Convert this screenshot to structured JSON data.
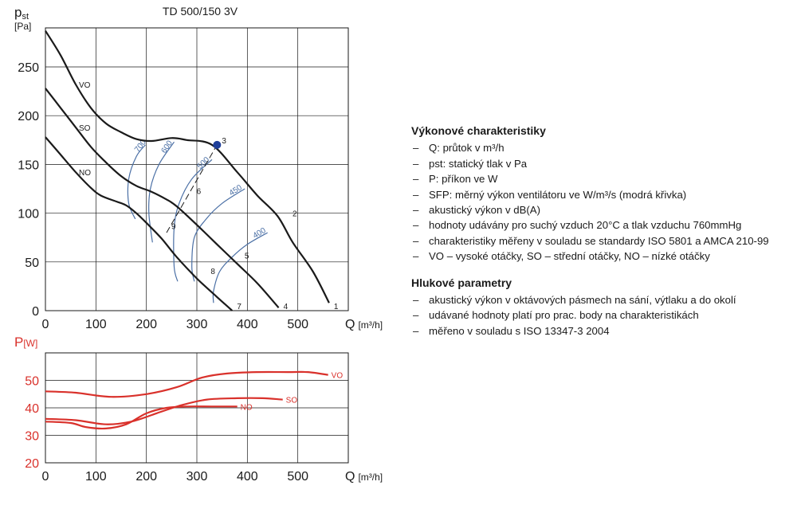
{
  "chart_data": [
    {
      "type": "line",
      "title": "TD 500/150 3V",
      "ylabel": "pst [Pa]",
      "xlabel": "Q [m³/h]",
      "xlim": [
        0,
        600
      ],
      "ylim": [
        0,
        290
      ],
      "xticks": [
        "0",
        "100",
        "200",
        "300",
        "400",
        "500"
      ],
      "yticks": [
        "0",
        "50",
        "100",
        "150",
        "200",
        "250"
      ],
      "grid": true,
      "ylabel_parts": {
        "main": "p",
        "sub": "st",
        "unit": "[Pa]"
      },
      "xlabel_parts": {
        "main": "Q",
        "unit": "[m³/h]"
      },
      "series": [
        {
          "name": "VO",
          "color": "#1a1a1a",
          "points": [
            [
              0,
              287
            ],
            [
              30,
              262
            ],
            [
              60,
              232
            ],
            [
              90,
              208
            ],
            [
              120,
              192
            ],
            [
              150,
              183
            ],
            [
              180,
              176
            ],
            [
              210,
              174
            ],
            [
              250,
              177
            ],
            [
              280,
              175
            ],
            [
              330,
              170
            ],
            [
              380,
              142
            ],
            [
              420,
              118
            ],
            [
              460,
              97
            ],
            [
              490,
              70
            ],
            [
              530,
              40
            ],
            [
              562,
              8
            ]
          ]
        },
        {
          "name": "SO",
          "color": "#1a1a1a",
          "points": [
            [
              0,
              228
            ],
            [
              30,
              208
            ],
            [
              60,
              188
            ],
            [
              90,
              168
            ],
            [
              120,
              152
            ],
            [
              150,
              138
            ],
            [
              180,
              128
            ],
            [
              210,
              122
            ],
            [
              240,
              114
            ],
            [
              260,
              107
            ],
            [
              300,
              88
            ],
            [
              340,
              68
            ],
            [
              380,
              48
            ],
            [
              420,
              28
            ],
            [
              462,
              3
            ]
          ]
        },
        {
          "name": "NO",
          "color": "#1a1a1a",
          "points": [
            [
              0,
              178
            ],
            [
              30,
              160
            ],
            [
              60,
              142
            ],
            [
              90,
              126
            ],
            [
              110,
              118
            ],
            [
              140,
              112
            ],
            [
              160,
              108
            ],
            [
              180,
              100
            ],
            [
              200,
              90
            ],
            [
              230,
              74
            ],
            [
              260,
              55
            ],
            [
              300,
              33
            ],
            [
              340,
              14
            ],
            [
              370,
              0
            ]
          ]
        }
      ],
      "sfp_curves": [
        {
          "label": "700",
          "color": "#4a6fa5",
          "points": [
            [
              198,
              170
            ],
            [
              180,
              158
            ],
            [
              165,
              135
            ],
            [
              165,
              110
            ],
            [
              178,
              94
            ]
          ]
        },
        {
          "label": "600",
          "color": "#4a6fa5",
          "points": [
            [
              255,
              173
            ],
            [
              225,
              150
            ],
            [
              208,
              125
            ],
            [
              205,
              100
            ],
            [
              212,
              70
            ]
          ]
        },
        {
          "label": "500",
          "color": "#4a6fa5",
          "points": [
            [
              330,
              155
            ],
            [
              290,
              135
            ],
            [
              265,
              110
            ],
            [
              255,
              85
            ],
            [
              255,
              45
            ],
            [
              262,
              30
            ]
          ]
        },
        {
          "label": "450",
          "color": "#4a6fa5",
          "points": [
            [
              395,
              125
            ],
            [
              350,
              110
            ],
            [
              320,
              95
            ],
            [
              295,
              75
            ],
            [
              290,
              45
            ],
            [
              295,
              30
            ]
          ]
        },
        {
          "label": "400",
          "color": "#4a6fa5",
          "points": [
            [
              440,
              80
            ],
            [
              400,
              68
            ],
            [
              370,
              55
            ],
            [
              345,
              40
            ],
            [
              333,
              20
            ],
            [
              333,
              8
            ]
          ]
        }
      ],
      "system_line": {
        "color": "#1a1a1a",
        "dashed": true,
        "points": [
          [
            240,
            80
          ],
          [
            340,
            170
          ]
        ]
      },
      "points": [
        {
          "label": "1",
          "x": 562,
          "y": 0
        },
        {
          "label": "2",
          "x": 480,
          "y": 95
        },
        {
          "label": "3",
          "x": 340,
          "y": 170
        },
        {
          "label": "4",
          "x": 462,
          "y": 0
        },
        {
          "label": "5",
          "x": 385,
          "y": 52
        },
        {
          "label": "6",
          "x": 290,
          "y": 118
        },
        {
          "label": "7",
          "x": 370,
          "y": 0
        },
        {
          "label": "8",
          "x": 318,
          "y": 36
        },
        {
          "label": "9",
          "x": 240,
          "y": 82
        }
      ],
      "marker": {
        "x": 340,
        "y": 170,
        "color": "#1f3f9a"
      }
    },
    {
      "type": "line",
      "ylabel": "P[W]",
      "xlabel": "Q [m³/h]",
      "xlim": [
        0,
        600
      ],
      "ylim": [
        20,
        60
      ],
      "xticks": [
        "0",
        "100",
        "200",
        "300",
        "400",
        "500"
      ],
      "yticks": [
        "20",
        "30",
        "40",
        "50"
      ],
      "grid": true,
      "ylabel_parts": {
        "main": "P",
        "unit": "[W]"
      },
      "xlabel_parts": {
        "main": "Q",
        "unit": "[m³/h]"
      },
      "series": [
        {
          "name": "VO",
          "color": "#d9312b",
          "points": [
            [
              0,
              46
            ],
            [
              60,
              45.5
            ],
            [
              130,
              44
            ],
            [
              200,
              45
            ],
            [
              260,
              47.5
            ],
            [
              310,
              51
            ],
            [
              360,
              52.5
            ],
            [
              420,
              53
            ],
            [
              480,
              53
            ],
            [
              520,
              53
            ],
            [
              560,
              52
            ]
          ]
        },
        {
          "name": "SO",
          "color": "#d9312b",
          "points": [
            [
              0,
              36
            ],
            [
              60,
              35.5
            ],
            [
              120,
              34
            ],
            [
              170,
              35
            ],
            [
              220,
              38
            ],
            [
              270,
              41
            ],
            [
              320,
              43
            ],
            [
              380,
              43.5
            ],
            [
              430,
              43.5
            ],
            [
              470,
              43
            ]
          ]
        },
        {
          "name": "NO",
          "color": "#d9312b",
          "points": [
            [
              0,
              35
            ],
            [
              50,
              34.5
            ],
            [
              80,
              33
            ],
            [
              120,
              32.5
            ],
            [
              160,
              34
            ],
            [
              200,
              38
            ],
            [
              240,
              40
            ],
            [
              280,
              40.5
            ],
            [
              330,
              40.5
            ],
            [
              380,
              40.5
            ]
          ]
        }
      ]
    }
  ],
  "legend": {
    "section1_title": "Výkonové charakteristiky",
    "section1_items": [
      "Q: průtok v m³/h",
      "pst: statický tlak v Pa",
      "P: příkon ve W",
      "SFP: měrný výkon ventilátoru ve W/m³/s (modrá křivka)",
      "akustický výkon v dB(A)",
      "hodnoty udávány pro suchý vzduch 20°C a tlak vzduchu 760mmHg",
      "charakteristiky měřeny v souladu se standardy ISO 5801 a AMCA 210-99",
      "VO – vysoké otáčky, SO – střední otáčky, NO – nízké otáčky"
    ],
    "section2_title": "Hlukové parametry",
    "section2_items": [
      "akustický výkon v oktávových pásmech na sání, výtlaku a do okolí",
      "udávané hodnoty platí pro prac. body na charakteristikách",
      "měřeno v souladu s ISO 13347-3 2004"
    ]
  }
}
